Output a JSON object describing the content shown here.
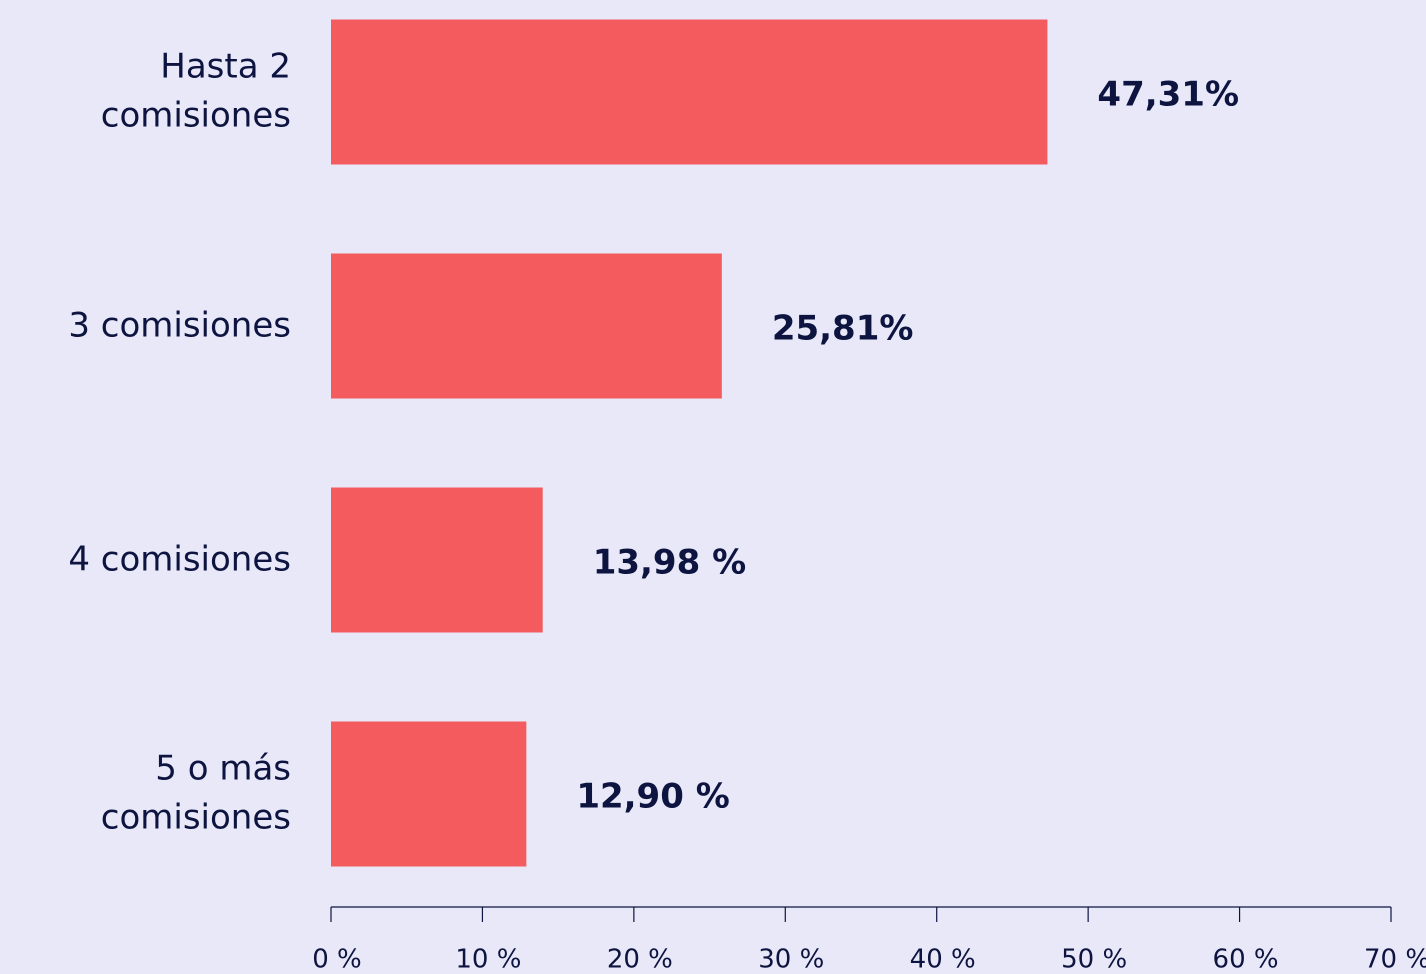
{
  "chart_data": {
    "type": "hbar",
    "categories": [
      "Hasta 2 comisiones",
      "3 comisiones",
      "4 comisiones",
      "5 o más comisiones"
    ],
    "values": [
      47.31,
      25.81,
      13.98,
      12.9
    ],
    "value_labels": [
      "47,31%",
      "25,81%",
      "13,98 %",
      "12,90 %"
    ],
    "color": "#f35b5e",
    "xlim": [
      0,
      70
    ],
    "xticks": [
      {
        "value": 0,
        "label": "0 %"
      },
      {
        "value": 10,
        "label": "10 %"
      },
      {
        "value": 20,
        "label": "20 %"
      },
      {
        "value": 30,
        "label": "30 %"
      },
      {
        "value": 40,
        "label": "40 %"
      },
      {
        "value": 50,
        "label": "50 %"
      },
      {
        "value": 60,
        "label": "60 %"
      },
      {
        "value": 70,
        "label": "70 %"
      }
    ]
  }
}
